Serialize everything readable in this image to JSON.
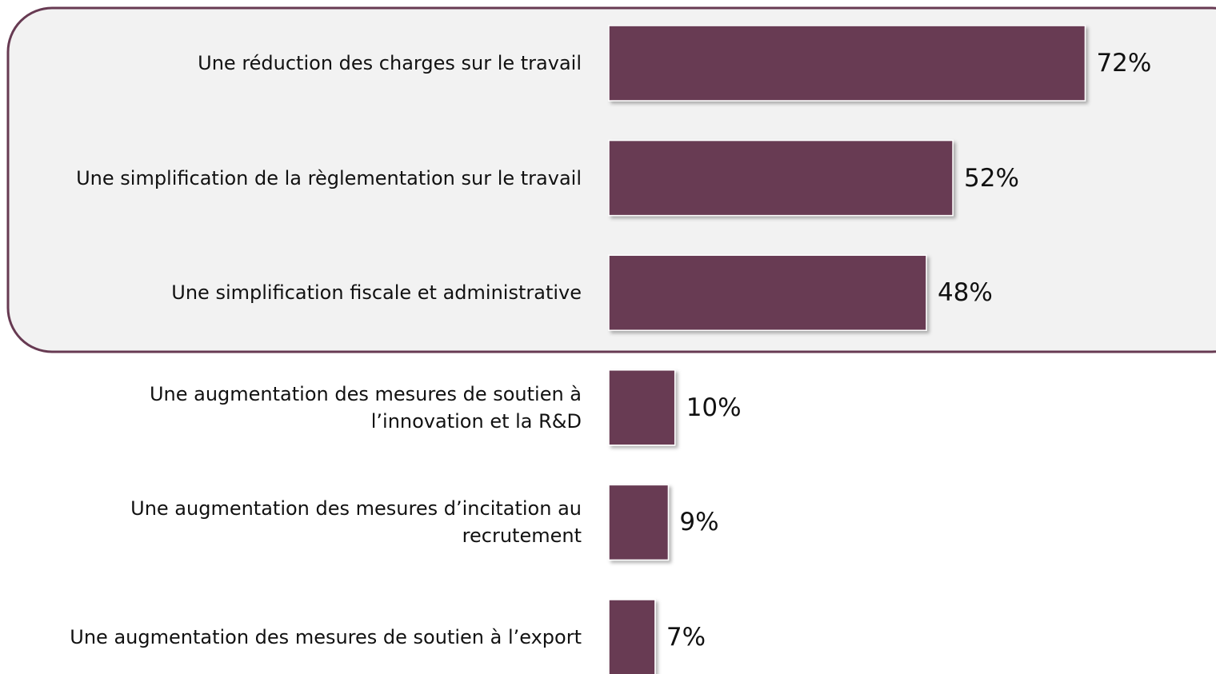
{
  "chart_data": {
    "type": "bar",
    "orientation": "horizontal",
    "categories": [
      "Une réduction des charges sur le travail",
      "Une simplification de la règlementation sur le travail",
      "Une simplification fiscale et administrative",
      "Une augmentation des mesures de soutien à l’innovation et la R&D",
      "Une augmentation des mesures d’incitation au recrutement",
      "Une augmentation des mesures de soutien à l’export"
    ],
    "values": [
      72,
      52,
      48,
      10,
      9,
      7
    ],
    "value_labels": [
      "72%",
      "52%",
      "48%",
      "10%",
      "9%",
      "7%"
    ],
    "color": "#673a52"
  }
}
